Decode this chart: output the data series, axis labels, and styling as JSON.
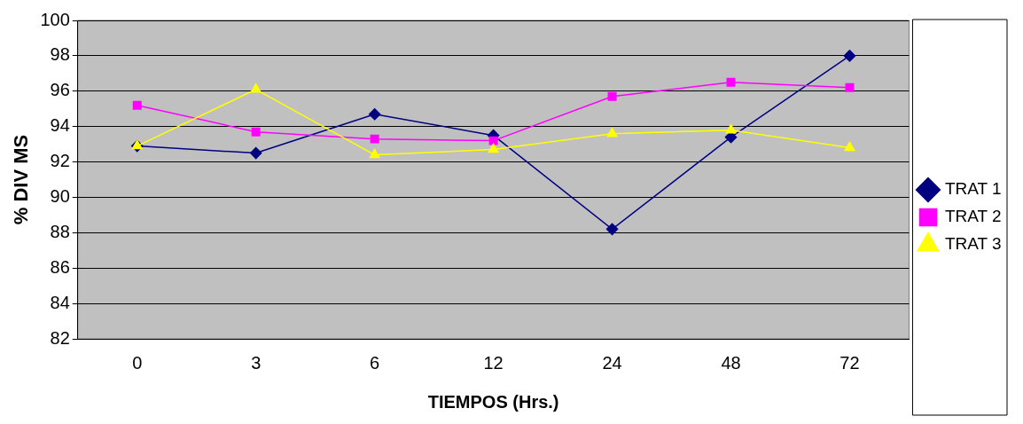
{
  "chart_data": {
    "type": "line",
    "xlabel": "TIEMPOS (Hrs.)",
    "ylabel": "% DIV MS",
    "categories": [
      "0",
      "3",
      "6",
      "12",
      "24",
      "48",
      "72"
    ],
    "series": [
      {
        "name": "TRAT 1",
        "color": "#000080",
        "marker": "diamond",
        "values": [
          92.9,
          92.5,
          94.7,
          93.5,
          88.2,
          93.4,
          98.0
        ]
      },
      {
        "name": "TRAT 2",
        "color": "#ff00ff",
        "marker": "square",
        "values": [
          95.2,
          93.7,
          93.3,
          93.2,
          95.7,
          96.5,
          96.2
        ]
      },
      {
        "name": "TRAT 3",
        "color": "#ffff00",
        "marker": "triangle",
        "values": [
          92.9,
          96.1,
          92.4,
          92.7,
          93.6,
          93.8,
          92.8
        ]
      }
    ],
    "ylim": [
      82,
      100
    ],
    "yticks": [
      82,
      84,
      86,
      88,
      90,
      92,
      94,
      96,
      98,
      100
    ],
    "grid": "y",
    "legend": "right"
  }
}
